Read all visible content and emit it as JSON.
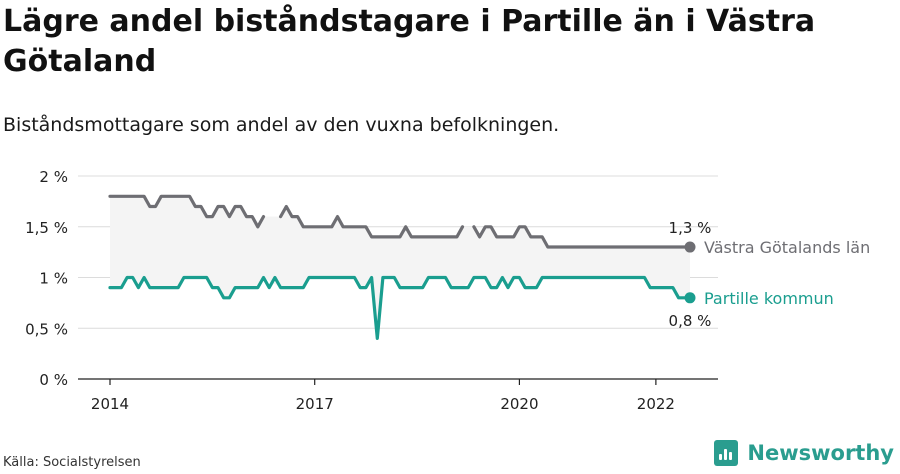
{
  "chart_data": {
    "type": "line",
    "title": "Lägre andel biståndstagare i Partille än i Västra Götaland",
    "subtitle": "Biståndsmottagare som andel av den vuxna befolkningen.",
    "ylabel": "",
    "xlabel": "",
    "ylim": [
      0,
      2
    ],
    "x_range": [
      "2014-01",
      "2022-07"
    ],
    "y_ticks": [
      0,
      0.5,
      1,
      1.5,
      2
    ],
    "y_tick_labels": [
      "0 %",
      "0,5 %",
      "1 %",
      "1,5 %",
      "2 %"
    ],
    "x_ticks": [
      "2014-01",
      "2017-01",
      "2020-01",
      "2022-01"
    ],
    "x_tick_labels": [
      "2014",
      "2017",
      "2020",
      "2022"
    ],
    "grid": "horizontal",
    "x": [
      "2014-01",
      "2014-02",
      "2014-03",
      "2014-04",
      "2014-05",
      "2014-06",
      "2014-07",
      "2014-08",
      "2014-09",
      "2014-10",
      "2014-11",
      "2014-12",
      "2015-01",
      "2015-02",
      "2015-03",
      "2015-04",
      "2015-05",
      "2015-06",
      "2015-07",
      "2015-08",
      "2015-09",
      "2015-10",
      "2015-11",
      "2015-12",
      "2016-01",
      "2016-02",
      "2016-03",
      "2016-04",
      "2016-05",
      "2016-06",
      "2016-07",
      "2016-08",
      "2016-09",
      "2016-10",
      "2016-11",
      "2016-12",
      "2017-01",
      "2017-02",
      "2017-03",
      "2017-04",
      "2017-05",
      "2017-06",
      "2017-07",
      "2017-08",
      "2017-09",
      "2017-10",
      "2017-11",
      "2017-12",
      "2018-01",
      "2018-02",
      "2018-03",
      "2018-04",
      "2018-05",
      "2018-06",
      "2018-07",
      "2018-08",
      "2018-09",
      "2018-10",
      "2018-11",
      "2018-12",
      "2019-01",
      "2019-02",
      "2019-03",
      "2019-04",
      "2019-05",
      "2019-06",
      "2019-07",
      "2019-08",
      "2019-09",
      "2019-10",
      "2019-11",
      "2019-12",
      "2020-01",
      "2020-02",
      "2020-03",
      "2020-04",
      "2020-05",
      "2020-06",
      "2020-07",
      "2020-08",
      "2020-09",
      "2020-10",
      "2020-11",
      "2020-12",
      "2021-01",
      "2021-02",
      "2021-03",
      "2021-04",
      "2021-05",
      "2021-06",
      "2021-07",
      "2021-08",
      "2021-09",
      "2021-10",
      "2021-11",
      "2021-12",
      "2022-01",
      "2022-02",
      "2022-03",
      "2022-04",
      "2022-05",
      "2022-06",
      "2022-07"
    ],
    "series": [
      {
        "name": "Västra Götalands län",
        "color": "#6e6e73",
        "end_label": "1,3 %",
        "values": [
          1.8,
          1.8,
          1.8,
          1.8,
          1.8,
          1.8,
          1.8,
          1.7,
          1.7,
          1.8,
          1.8,
          1.8,
          1.8,
          1.8,
          1.8,
          1.7,
          1.7,
          1.6,
          1.6,
          1.7,
          1.7,
          1.6,
          1.7,
          1.7,
          1.6,
          1.6,
          1.5,
          1.6,
          null,
          null,
          1.6,
          1.7,
          1.6,
          1.6,
          1.5,
          1.5,
          1.5,
          1.5,
          1.5,
          1.5,
          1.6,
          1.5,
          1.5,
          1.5,
          1.5,
          1.5,
          1.4,
          1.4,
          1.4,
          1.4,
          1.4,
          1.4,
          1.5,
          1.4,
          1.4,
          1.4,
          1.4,
          1.4,
          1.4,
          1.4,
          1.4,
          1.4,
          1.5,
          null,
          1.5,
          1.4,
          1.5,
          1.5,
          1.4,
          1.4,
          1.4,
          1.4,
          1.5,
          1.5,
          1.4,
          1.4,
          1.4,
          1.3,
          1.3,
          1.3,
          1.3,
          1.3,
          1.3,
          1.3,
          1.3,
          1.3,
          1.3,
          1.3,
          1.3,
          1.3,
          1.3,
          1.3,
          1.3,
          1.3,
          1.3,
          1.3,
          1.3,
          1.3,
          1.3,
          1.3,
          1.3,
          1.3,
          1.3
        ]
      },
      {
        "name": "Partille kommun",
        "color": "#1a9e8f",
        "end_label": "0,8 %",
        "values": [
          0.9,
          0.9,
          0.9,
          1.0,
          1.0,
          0.9,
          1.0,
          0.9,
          0.9,
          0.9,
          0.9,
          0.9,
          0.9,
          1.0,
          1.0,
          1.0,
          1.0,
          1.0,
          0.9,
          0.9,
          0.8,
          0.8,
          0.9,
          0.9,
          0.9,
          0.9,
          0.9,
          1.0,
          0.9,
          1.0,
          0.9,
          0.9,
          0.9,
          0.9,
          0.9,
          1.0,
          1.0,
          1.0,
          1.0,
          1.0,
          1.0,
          1.0,
          1.0,
          1.0,
          0.9,
          0.9,
          1.0,
          0.4,
          1.0,
          1.0,
          1.0,
          0.9,
          0.9,
          0.9,
          0.9,
          0.9,
          1.0,
          1.0,
          1.0,
          1.0,
          0.9,
          0.9,
          0.9,
          0.9,
          1.0,
          1.0,
          1.0,
          0.9,
          0.9,
          1.0,
          0.9,
          1.0,
          1.0,
          0.9,
          0.9,
          0.9,
          1.0,
          1.0,
          1.0,
          1.0,
          1.0,
          1.0,
          1.0,
          1.0,
          1.0,
          1.0,
          1.0,
          1.0,
          1.0,
          1.0,
          1.0,
          1.0,
          1.0,
          1.0,
          1.0,
          0.9,
          0.9,
          0.9,
          0.9,
          0.9,
          0.8,
          0.8,
          0.8
        ]
      }
    ]
  },
  "footer": {
    "source": "Källa: Socialstyrelsen",
    "brand": "Newsworthy",
    "brand_color": "#2a9d8f"
  }
}
